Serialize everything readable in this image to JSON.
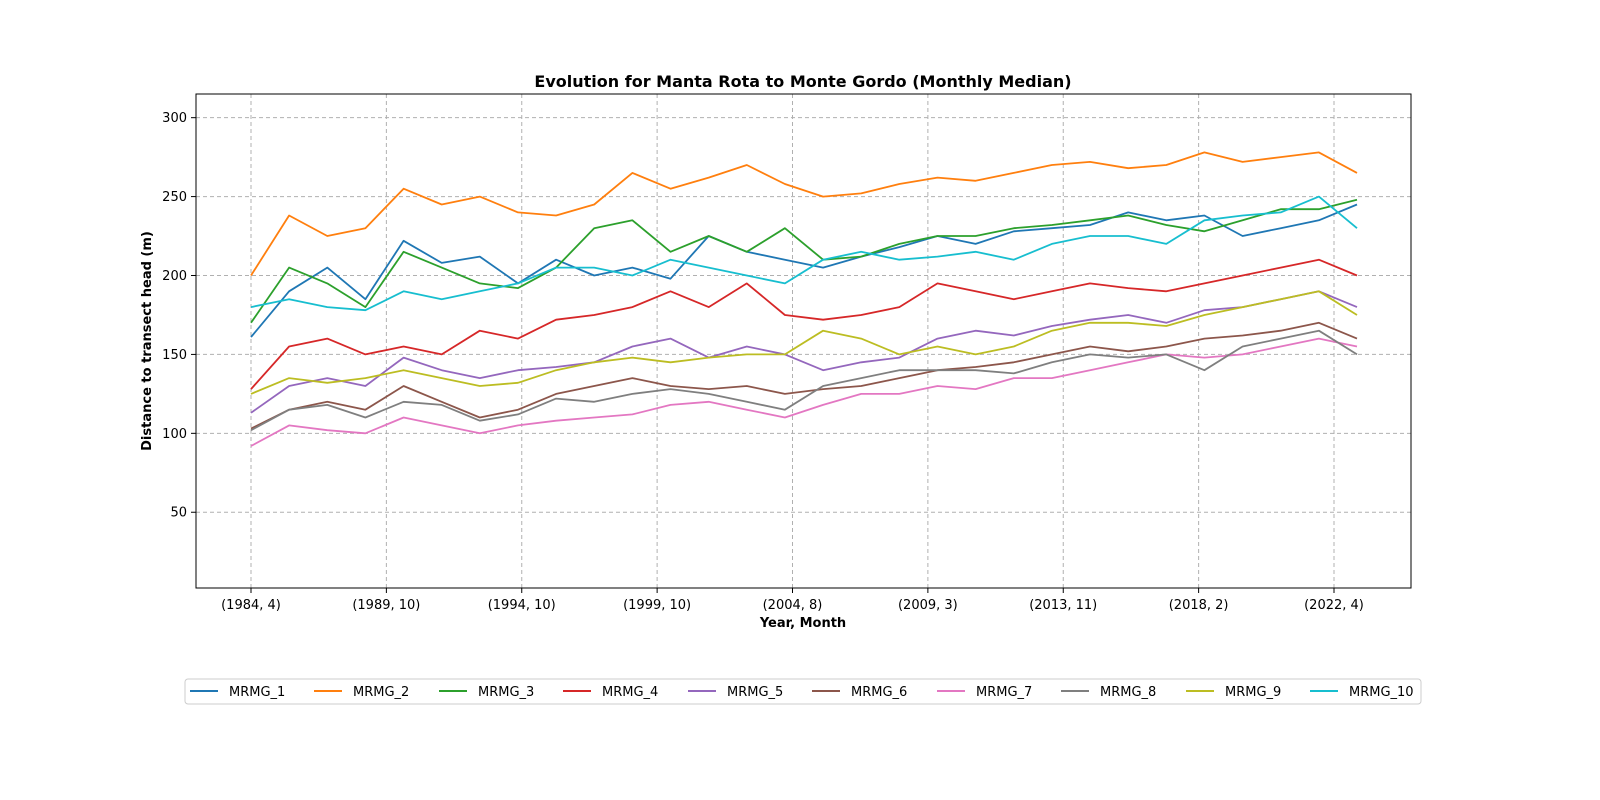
{
  "chart_data": {
    "type": "line",
    "title": "Evolution for Manta Rota to Monte Gordo (Monthly Median)",
    "xlabel": "Year, Month",
    "ylabel": "Distance to transect head (m)",
    "x_ticks": [
      "(1984, 4)",
      "(1989, 10)",
      "(1994, 10)",
      "(1999, 10)",
      "(2004, 8)",
      "(2009, 3)",
      "(2013, 11)",
      "(2018, 2)",
      "(2022, 4)"
    ],
    "y_ticks": [
      50,
      100,
      150,
      200,
      250,
      300
    ],
    "ylim": [
      2,
      315
    ],
    "grid": true,
    "legend_position": "bottom-center",
    "x": [
      "1984-04",
      "1985-10",
      "1987-04",
      "1988-10",
      "1989-10",
      "1991-04",
      "1992-10",
      "1994-04",
      "1994-10",
      "1996-04",
      "1997-10",
      "1999-04",
      "1999-10",
      "2001-04",
      "2002-10",
      "2004-02",
      "2004-08",
      "2006-02",
      "2007-08",
      "2009-03",
      "2010-09",
      "2012-05",
      "2013-11",
      "2015-05",
      "2016-11",
      "2018-02",
      "2019-08",
      "2021-02",
      "2022-04",
      "2023-03"
    ],
    "series": [
      {
        "name": "MRMG_1",
        "color": "#1f77b4",
        "values": [
          161,
          190,
          205,
          185,
          222,
          208,
          212,
          195,
          210,
          200,
          205,
          198,
          225,
          215,
          210,
          205,
          212,
          218,
          225,
          220,
          228,
          230,
          232,
          240,
          235,
          238,
          225,
          230,
          235,
          245
        ]
      },
      {
        "name": "MRMG_2",
        "color": "#ff7f0e",
        "values": [
          200,
          238,
          225,
          230,
          255,
          245,
          250,
          240,
          238,
          245,
          265,
          255,
          262,
          270,
          258,
          250,
          252,
          258,
          262,
          260,
          265,
          270,
          272,
          268,
          270,
          278,
          272,
          275,
          278,
          265
        ]
      },
      {
        "name": "MRMG_3",
        "color": "#2ca02c",
        "values": [
          170,
          205,
          195,
          180,
          215,
          205,
          195,
          192,
          205,
          230,
          235,
          215,
          225,
          215,
          230,
          210,
          212,
          220,
          225,
          225,
          230,
          232,
          235,
          238,
          232,
          228,
          235,
          242,
          242,
          248
        ]
      },
      {
        "name": "MRMG_4",
        "color": "#d62728",
        "values": [
          128,
          155,
          160,
          150,
          155,
          150,
          165,
          160,
          172,
          175,
          180,
          190,
          180,
          195,
          175,
          172,
          175,
          180,
          195,
          190,
          185,
          190,
          195,
          192,
          190,
          195,
          200,
          205,
          210,
          200
        ]
      },
      {
        "name": "MRMG_5",
        "color": "#9467bd",
        "values": [
          113,
          130,
          135,
          130,
          148,
          140,
          135,
          140,
          142,
          145,
          155,
          160,
          148,
          155,
          150,
          140,
          145,
          148,
          160,
          165,
          162,
          168,
          172,
          175,
          170,
          178,
          180,
          185,
          190,
          180
        ]
      },
      {
        "name": "MRMG_6",
        "color": "#8c564b",
        "values": [
          103,
          115,
          120,
          115,
          130,
          120,
          110,
          115,
          125,
          130,
          135,
          130,
          128,
          130,
          125,
          128,
          130,
          135,
          140,
          142,
          145,
          150,
          155,
          152,
          155,
          160,
          162,
          165,
          170,
          160
        ]
      },
      {
        "name": "MRMG_7",
        "color": "#e377c2",
        "values": [
          92,
          105,
          102,
          100,
          110,
          105,
          100,
          105,
          108,
          110,
          112,
          118,
          120,
          115,
          110,
          118,
          125,
          125,
          130,
          128,
          135,
          135,
          140,
          145,
          150,
          148,
          150,
          155,
          160,
          155
        ]
      },
      {
        "name": "MRMG_8",
        "color": "#7f7f7f",
        "values": [
          102,
          115,
          118,
          110,
          120,
          118,
          108,
          112,
          122,
          120,
          125,
          128,
          125,
          120,
          115,
          130,
          135,
          140,
          140,
          140,
          138,
          145,
          150,
          148,
          150,
          140,
          155,
          160,
          165,
          150
        ]
      },
      {
        "name": "MRMG_9",
        "color": "#bcbd22",
        "values": [
          125,
          135,
          132,
          135,
          140,
          135,
          130,
          132,
          140,
          145,
          148,
          145,
          148,
          150,
          150,
          165,
          160,
          150,
          155,
          150,
          155,
          165,
          170,
          170,
          168,
          175,
          180,
          185,
          190,
          175
        ]
      },
      {
        "name": "MRMG_10",
        "color": "#17becf",
        "values": [
          180,
          185,
          180,
          178,
          190,
          185,
          190,
          195,
          205,
          205,
          200,
          210,
          205,
          200,
          195,
          210,
          215,
          210,
          212,
          215,
          210,
          220,
          225,
          225,
          220,
          235,
          238,
          240,
          250,
          230
        ]
      }
    ]
  }
}
